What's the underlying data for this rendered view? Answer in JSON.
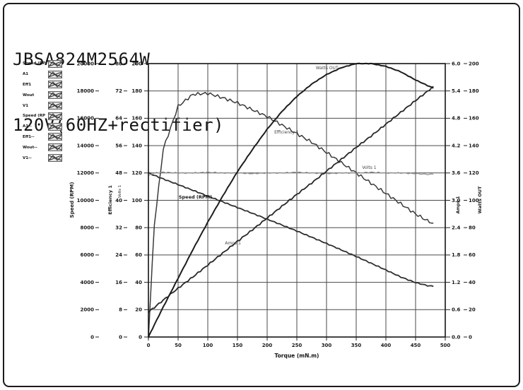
{
  "header": {
    "model": "JBSA824M2564W",
    "supply": "120V(60HZ+rectifier)"
  },
  "legend": {
    "items": [
      {
        "label": "Speed (RP"
      },
      {
        "label": "A1"
      },
      {
        "label": "Eff1"
      },
      {
        "label": "Wout"
      },
      {
        "label": "V1"
      },
      {
        "label": "Speed (RP"
      },
      {
        "label": "A1--"
      },
      {
        "label": "Eff1--"
      },
      {
        "label": "Wout--"
      },
      {
        "label": "V1--"
      }
    ]
  },
  "chart_data": {
    "type": "line",
    "x_axis": {
      "label": "Torque (mN.m)",
      "min": 0,
      "max": 500,
      "ticks": [
        0,
        50,
        100,
        150,
        200,
        250,
        300,
        350,
        400,
        450,
        500
      ]
    },
    "y_axes": [
      {
        "id": "speed",
        "title": "Speed (RPM)",
        "side": "left",
        "min": 0,
        "max": 20000,
        "step": 2000,
        "decimals": 0
      },
      {
        "id": "efficiency",
        "title": "Efficiency 1",
        "side": "left",
        "min": 0,
        "max": 80,
        "step": 8,
        "decimals": 0
      },
      {
        "id": "volts",
        "title": "Volts 1",
        "side": "left",
        "min": 0,
        "max": 200,
        "step": 20,
        "decimals": 0
      },
      {
        "id": "amps",
        "title": "Amps 1",
        "side": "right",
        "min": 0,
        "max": 6,
        "step": 0.6,
        "decimals": 1
      },
      {
        "id": "watts",
        "title": "Watts OUT",
        "side": "right",
        "min": 0,
        "max": 200,
        "step": 20,
        "decimals": 0
      }
    ],
    "x": [
      0,
      10,
      25,
      50,
      75,
      100,
      125,
      150,
      175,
      200,
      225,
      250,
      275,
      300,
      325,
      350,
      375,
      400,
      425,
      450,
      470,
      480
    ],
    "series": [
      {
        "name": "Speed (RPM)",
        "axis": "speed",
        "color": "#2e2e2e",
        "values": [
          12000,
          11820,
          11560,
          11150,
          10730,
          10310,
          9890,
          9470,
          9050,
          8620,
          8190,
          7750,
          7300,
          6840,
          6370,
          5890,
          5400,
          4900,
          4390,
          3980,
          3760,
          3700
        ]
      },
      {
        "name": "Efficiency 1",
        "axis": "efficiency",
        "color": "#3a3a3a",
        "values": [
          0,
          33,
          55,
          67.5,
          71,
          71.3,
          70,
          68.5,
          66.5,
          64.5,
          62,
          59.5,
          57,
          54,
          51,
          48,
          45,
          42,
          39,
          36,
          34,
          33.3
        ]
      },
      {
        "name": "Volts 1",
        "axis": "volts",
        "color": "#8c8c8c",
        "values": [
          118,
          120,
          120.5,
          120,
          120,
          120.5,
          120,
          120,
          119.5,
          120,
          120,
          120.5,
          120,
          119.5,
          120,
          120,
          120.5,
          120,
          120,
          119.5,
          119,
          119
        ]
      },
      {
        "name": "Amps 1",
        "axis": "amps",
        "color": "#262626",
        "values": [
          0.55,
          0.65,
          0.81,
          1.07,
          1.32,
          1.58,
          1.84,
          2.1,
          2.35,
          2.61,
          2.87,
          3.13,
          3.38,
          3.64,
          3.9,
          4.16,
          4.41,
          4.67,
          4.93,
          5.19,
          5.39,
          5.5
        ]
      },
      {
        "name": "Watts OUT",
        "axis": "watts",
        "color": "#1d1d1d",
        "values": [
          0,
          9,
          22,
          43,
          64,
          84,
          103,
          121,
          137,
          152,
          165,
          176,
          185,
          192,
          197,
          200,
          200,
          198,
          194,
          188,
          184,
          182
        ]
      }
    ],
    "curve_labels": [
      {
        "text": "Watts OUT",
        "t": 282,
        "value": 197,
        "axis": "watts",
        "bold": false
      },
      {
        "text": "Efficiency 1",
        "t": 212,
        "value": 60,
        "axis": "efficiency",
        "bold": false
      },
      {
        "text": "Volts 1",
        "t": 360,
        "value": 124,
        "axis": "volts",
        "bold": false
      },
      {
        "text": "Speed (RPM)",
        "t": 51,
        "value": 10230,
        "axis": "speed",
        "bold": true
      },
      {
        "text": "Amps 1",
        "t": 129,
        "value": 2.06,
        "axis": "amps",
        "bold": false
      }
    ],
    "colors": {
      "grid": "#4a4a4a",
      "frame": "#141414",
      "tick_text": "#1c1c1c",
      "curve_label": "#454545"
    }
  }
}
